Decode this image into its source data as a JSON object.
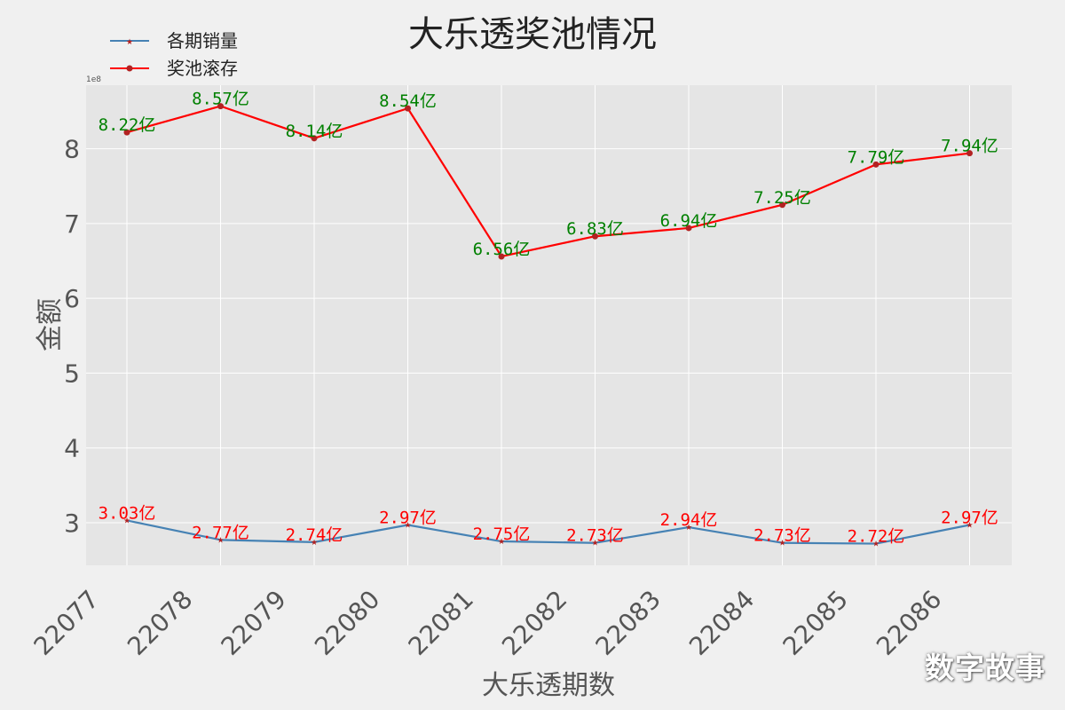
{
  "chart_data": {
    "type": "line",
    "title": "大乐透奖池情况",
    "xlabel": "大乐透期数",
    "ylabel": "金额",
    "y_offset_text": "1e8",
    "categories": [
      "22077",
      "22078",
      "22079",
      "22080",
      "22081",
      "22082",
      "22083",
      "22084",
      "22085",
      "22086"
    ],
    "ylim": [
      2.43,
      8.85
    ],
    "yticks": [
      3,
      4,
      5,
      6,
      7,
      8
    ],
    "grid": true,
    "legend_position": "top-left",
    "series": [
      {
        "name": "各期销量",
        "color": "#4682b4",
        "label_color": "#ff0000",
        "marker": "star",
        "values": [
          3.03,
          2.77,
          2.74,
          2.97,
          2.75,
          2.73,
          2.94,
          2.73,
          2.72,
          2.97
        ],
        "labels": [
          "3.03亿",
          "2.77亿",
          "2.74亿",
          "2.97亿",
          "2.75亿",
          "2.73亿",
          "2.94亿",
          "2.73亿",
          "2.72亿",
          "2.97亿"
        ]
      },
      {
        "name": "奖池滚存",
        "color": "#ff0000",
        "label_color": "#008000",
        "marker": "circle",
        "values": [
          8.22,
          8.57,
          8.14,
          8.54,
          6.56,
          6.83,
          6.94,
          7.25,
          7.79,
          7.94
        ],
        "labels": [
          "8.22亿",
          "8.57亿",
          "8.14亿",
          "8.54亿",
          "6.56亿",
          "6.83亿",
          "6.94亿",
          "7.25亿",
          "7.79亿",
          "7.94亿"
        ]
      }
    ]
  },
  "watermark": "数字故事"
}
